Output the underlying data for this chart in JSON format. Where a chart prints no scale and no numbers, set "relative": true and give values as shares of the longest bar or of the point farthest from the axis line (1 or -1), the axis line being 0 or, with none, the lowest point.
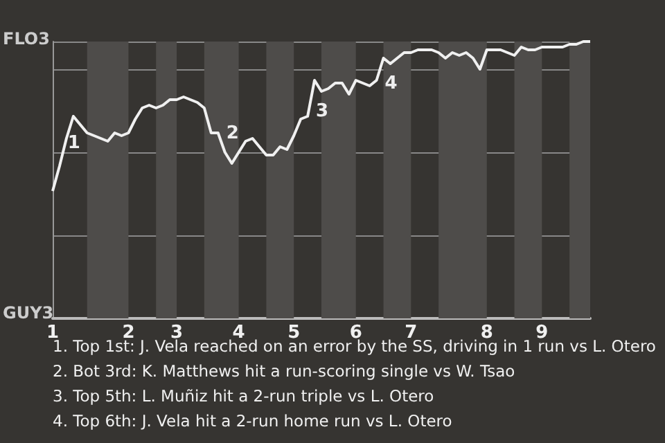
{
  "chart_data": {
    "type": "line",
    "relative": true,
    "categories": [
      "1",
      null,
      null,
      null,
      null,
      null,
      null,
      null,
      null,
      null,
      null,
      "2",
      null,
      null,
      null,
      null,
      null,
      null,
      "3",
      null,
      null,
      null,
      null,
      null,
      null,
      null,
      null,
      "4",
      null,
      null,
      null,
      null,
      null,
      null,
      null,
      "5",
      null,
      null,
      null,
      null,
      null,
      null,
      null,
      null,
      "6",
      null,
      null,
      null,
      null,
      null,
      null,
      null,
      "7",
      null,
      null,
      null,
      null,
      null,
      null,
      null,
      null,
      null,
      null,
      "8",
      null,
      null,
      null,
      null,
      null,
      null,
      null,
      "9",
      null,
      null,
      null,
      null,
      null,
      null,
      null
    ],
    "values": [
      0.46,
      0.55,
      0.65,
      0.73,
      0.7,
      0.67,
      0.66,
      0.65,
      0.64,
      0.67,
      0.66,
      0.67,
      0.72,
      0.76,
      0.77,
      0.76,
      0.77,
      0.79,
      0.79,
      0.8,
      0.79,
      0.78,
      0.76,
      0.67,
      0.67,
      0.6,
      0.56,
      0.6,
      0.64,
      0.65,
      0.62,
      0.59,
      0.59,
      0.62,
      0.61,
      0.66,
      0.72,
      0.73,
      0.86,
      0.82,
      0.83,
      0.85,
      0.85,
      0.81,
      0.86,
      0.85,
      0.84,
      0.86,
      0.94,
      0.92,
      0.94,
      0.96,
      0.96,
      0.97,
      0.97,
      0.97,
      0.96,
      0.94,
      0.96,
      0.95,
      0.96,
      0.94,
      0.9,
      0.97,
      0.97,
      0.97,
      0.96,
      0.95,
      0.98,
      0.97,
      0.97,
      0.98,
      0.98,
      0.98,
      0.98,
      0.99,
      0.99,
      1.0,
      1.0
    ],
    "color": "#f0f0f0",
    "grid": "y",
    "marker": "none",
    "line_style": "solid",
    "annotations": [
      "1",
      "2",
      "3",
      "4",
      "FLO3",
      "GUY3",
      "1. Top 1st: J. Vela reached on an error by the SS, driving in 1 run vs L. Otero",
      "2. Bot 3rd: K. Matthews hit a run-scoring single vs W. Tsao",
      "3. Top 5th: L. Muñiz hit a 2-run triple vs L. Otero",
      "4. Top 6th: J. Vela hit a 2-run home run vs L. Otero"
    ]
  }
}
